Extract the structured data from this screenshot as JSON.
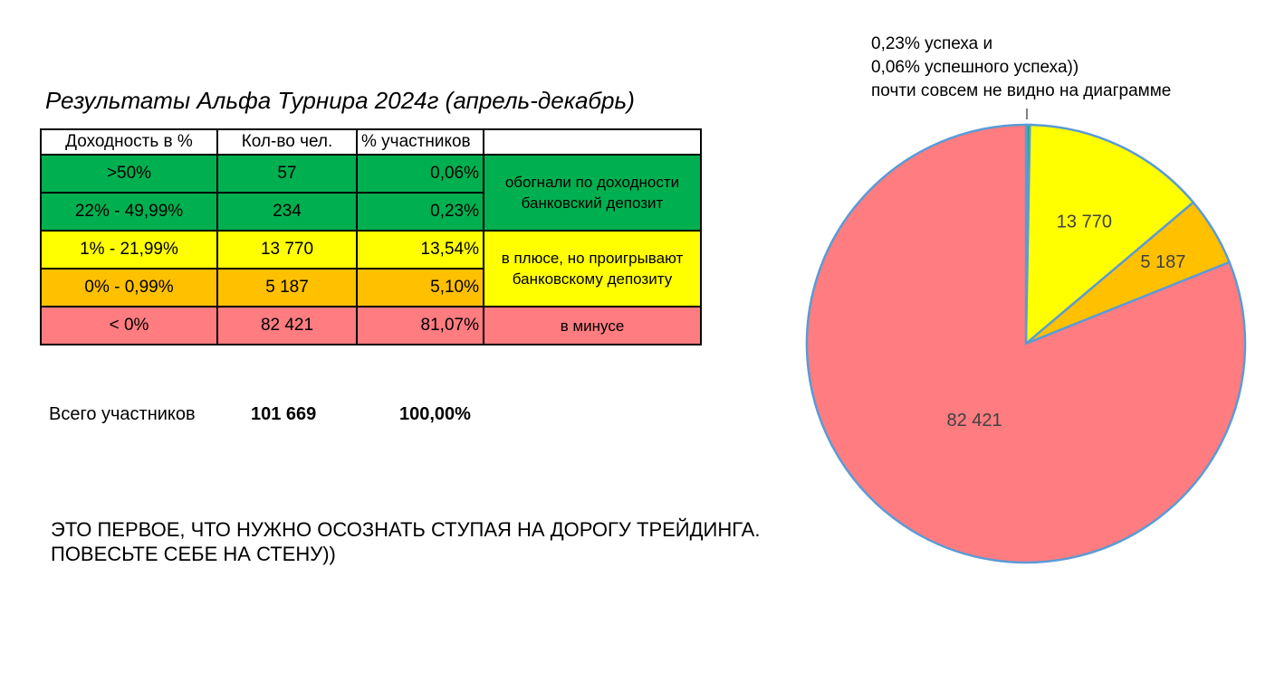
{
  "title": "Результаты Альфа Турнира 2024г (апрель-декабрь)",
  "table": {
    "headers": [
      "Доходность в %",
      "Кол-во чел.",
      "% участников",
      ""
    ],
    "rows": [
      {
        "range": ">50%",
        "count": "57",
        "pct": "0,06%",
        "color": "#00b050"
      },
      {
        "range": "22% - 49,99%",
        "count": "234",
        "pct": "0,23%",
        "color": "#00b050"
      },
      {
        "range": "1% - 21,99%",
        "count": "13 770",
        "pct": "13,54%",
        "color": "#ffff00"
      },
      {
        "range": "0% - 0,99%",
        "count": "5 187",
        "pct": "5,10%",
        "color": "#ffc000"
      },
      {
        "range": "< 0%",
        "count": "82 421",
        "pct": "81,07%",
        "color": "#ff7c80"
      }
    ],
    "notes": {
      "green": "обогнали по доходности\nбанковский депозит",
      "yellow": "в плюсе, но проигрывают\nбанковскому депозиту",
      "red": "в минусе"
    }
  },
  "total": {
    "label": "Всего участников",
    "count": "101 669",
    "pct": "100,00%"
  },
  "note": "ЭТО ПЕРВОЕ, ЧТО НУЖНО ОСОЗНАТЬ СТУПАЯ НА ДОРОГУ ТРЕЙДИНГА.\nПОВЕСЬТЕ СЕБЕ НА СТЕНУ))",
  "annotation": "0,23% успеха и\n0,06% успешного успеха))\nпочти совсем не видно на диаграмме",
  "chart_data": {
    "type": "pie",
    "categories": [
      ">50%",
      "22% - 49,99%",
      "1% - 21,99%",
      "0% - 0,99%",
      "< 0%"
    ],
    "values": [
      57,
      234,
      13770,
      5187,
      82421
    ],
    "data_labels": [
      "",
      "",
      "13 770",
      "5 187",
      "82 421"
    ],
    "colors": [
      "#00b050",
      "#00b050",
      "#ffff00",
      "#ffc000",
      "#ff7c80"
    ],
    "slice_border": "#5b9bd5",
    "start": "12 o'clock, clockwise"
  }
}
